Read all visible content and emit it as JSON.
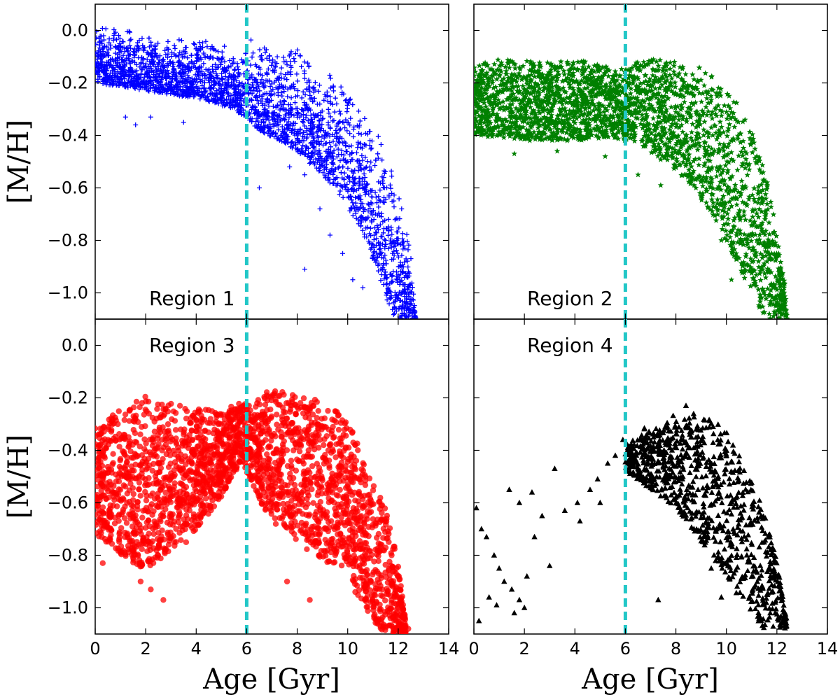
{
  "chart_data": {
    "type": "scatter",
    "title": "",
    "layout": "2x2 grid, shared axes",
    "xlabel": "Age [Gyr]",
    "ylabel": "[M/H]",
    "xlim": [
      0,
      14
    ],
    "ylim": [
      -1.1,
      0.1
    ],
    "x_ticks": [
      "0",
      "2",
      "4",
      "6",
      "8",
      "10",
      "12",
      "14"
    ],
    "y_ticks": [
      "0.0",
      "−0.2",
      "−0.4",
      "−0.6",
      "−0.8",
      "−1.0"
    ],
    "y_tick_values": [
      0.0,
      -0.2,
      -0.4,
      -0.6,
      -0.8,
      -1.0
    ],
    "reference_line": {
      "x": 6,
      "color": "#22c7c7",
      "style": "dashed"
    },
    "panels": [
      {
        "name": "region-1",
        "label": "Region 1",
        "marker": "plus",
        "color": "#0000ff",
        "envelope": [
          [
            0,
            0.02
          ],
          [
            1,
            0.01
          ],
          [
            2,
            -0.01
          ],
          [
            2.8,
            -0.04
          ],
          [
            3.2,
            -0.02
          ],
          [
            4,
            -0.04
          ],
          [
            4.5,
            -0.02
          ],
          [
            5,
            -0.04
          ],
          [
            5.7,
            -0.1
          ],
          [
            6,
            -0.02
          ],
          [
            6.5,
            -0.04
          ],
          [
            7.5,
            -0.09
          ],
          [
            8.1,
            -0.05
          ],
          [
            8.8,
            -0.17
          ],
          [
            9.5,
            -0.16
          ],
          [
            10.2,
            -0.2
          ],
          [
            10.8,
            -0.3
          ],
          [
            11.3,
            -0.38
          ],
          [
            11.8,
            -0.52
          ],
          [
            12.2,
            -0.68
          ],
          [
            12.5,
            -0.85
          ],
          [
            12.7,
            -1.1
          ]
        ],
        "lower": [
          [
            0,
            -0.2
          ],
          [
            2,
            -0.23
          ],
          [
            4,
            -0.26
          ],
          [
            5.5,
            -0.3
          ],
          [
            6.5,
            -0.38
          ],
          [
            8,
            -0.46
          ],
          [
            9.5,
            -0.6
          ],
          [
            10.5,
            -0.75
          ],
          [
            11.3,
            -0.95
          ],
          [
            11.8,
            -1.1
          ]
        ],
        "outliers": [
          [
            1.2,
            -0.33
          ],
          [
            1.6,
            -0.36
          ],
          [
            2.2,
            -0.33
          ],
          [
            3.5,
            -0.35
          ],
          [
            6.5,
            -0.6
          ],
          [
            7.7,
            -0.52
          ],
          [
            8.3,
            -0.55
          ],
          [
            8.9,
            -0.68
          ],
          [
            9.8,
            -0.85
          ],
          [
            8.3,
            -0.91
          ],
          [
            9.3,
            -0.78
          ],
          [
            10.2,
            -0.95
          ],
          [
            10.6,
            -0.98
          ]
        ]
      },
      {
        "name": "region-2",
        "label": "Region 2",
        "marker": "star",
        "color": "#008000",
        "envelope": [
          [
            0,
            -0.13
          ],
          [
            1,
            -0.11
          ],
          [
            2,
            -0.11
          ],
          [
            3,
            -0.12
          ],
          [
            4,
            -0.11
          ],
          [
            5,
            -0.13
          ],
          [
            6,
            -0.14
          ],
          [
            6.8,
            -0.1
          ],
          [
            8,
            -0.12
          ],
          [
            9,
            -0.14
          ],
          [
            10,
            -0.22
          ],
          [
            10.8,
            -0.33
          ],
          [
            11.3,
            -0.45
          ],
          [
            11.7,
            -0.6
          ],
          [
            12,
            -0.78
          ],
          [
            12.3,
            -0.95
          ],
          [
            12.4,
            -1.1
          ]
        ],
        "lower": [
          [
            0,
            -0.4
          ],
          [
            2,
            -0.42
          ],
          [
            4,
            -0.42
          ],
          [
            5.5,
            -0.41
          ],
          [
            6.5,
            -0.43
          ],
          [
            7.5,
            -0.5
          ],
          [
            8.5,
            -0.58
          ],
          [
            9.5,
            -0.72
          ],
          [
            10.5,
            -0.9
          ],
          [
            11.2,
            -1.05
          ],
          [
            11.6,
            -1.1
          ]
        ],
        "outliers": [
          [
            1.6,
            -0.47
          ],
          [
            3.3,
            -0.46
          ],
          [
            5.2,
            -0.48
          ],
          [
            6.5,
            -0.55
          ],
          [
            7.4,
            -0.59
          ],
          [
            8.4,
            -0.55
          ],
          [
            9.8,
            -0.8
          ],
          [
            10.2,
            -0.95
          ],
          [
            11.7,
            -1.08
          ]
        ]
      },
      {
        "name": "region-3",
        "label": "Region 3",
        "marker": "circle",
        "color": "#ff0000",
        "envelope": [
          [
            0,
            -0.3
          ],
          [
            1,
            -0.24
          ],
          [
            2,
            -0.19
          ],
          [
            3,
            -0.22
          ],
          [
            4,
            -0.24
          ],
          [
            5,
            -0.25
          ],
          [
            5.8,
            -0.21
          ],
          [
            6.2,
            -0.23
          ],
          [
            6.8,
            -0.16
          ],
          [
            7.8,
            -0.18
          ],
          [
            8.8,
            -0.2
          ],
          [
            9.6,
            -0.24
          ],
          [
            10.2,
            -0.33
          ],
          [
            10.7,
            -0.44
          ],
          [
            11.3,
            -0.56
          ],
          [
            11.8,
            -0.72
          ],
          [
            12.1,
            -0.9
          ],
          [
            12.3,
            -1.05
          ]
        ],
        "lower": [
          [
            0,
            -0.72
          ],
          [
            1,
            -0.8
          ],
          [
            2,
            -0.86
          ],
          [
            3,
            -0.78
          ],
          [
            4,
            -0.7
          ],
          [
            5,
            -0.58
          ],
          [
            5.8,
            -0.44
          ],
          [
            6.3,
            -0.55
          ],
          [
            7,
            -0.68
          ],
          [
            8,
            -0.75
          ],
          [
            9,
            -0.82
          ],
          [
            10,
            -0.85
          ],
          [
            10.5,
            -0.98
          ],
          [
            11,
            -1.05
          ],
          [
            11.5,
            -1.1
          ]
        ],
        "outliers": [
          [
            1.8,
            -0.9
          ],
          [
            2.2,
            -0.93
          ],
          [
            2.7,
            -0.97
          ],
          [
            0.3,
            -0.83
          ],
          [
            3.6,
            -0.75
          ],
          [
            7.6,
            -0.9
          ],
          [
            8.5,
            -0.97
          ],
          [
            9.6,
            -0.72
          ],
          [
            10.3,
            -0.94
          ],
          [
            11.3,
            -1.07
          ],
          [
            12.4,
            -1.08
          ]
        ]
      },
      {
        "name": "region-4",
        "label": "Region 4",
        "marker": "triangle",
        "color": "#000000",
        "envelope": [
          [
            6,
            -0.38
          ],
          [
            6.8,
            -0.31
          ],
          [
            7.8,
            -0.27
          ],
          [
            8.8,
            -0.25
          ],
          [
            9.8,
            -0.3
          ],
          [
            10.5,
            -0.38
          ],
          [
            11,
            -0.5
          ],
          [
            11.5,
            -0.63
          ],
          [
            11.9,
            -0.78
          ],
          [
            12.2,
            -0.92
          ],
          [
            12.4,
            -1.05
          ]
        ],
        "lower": [
          [
            6,
            -0.48
          ],
          [
            7,
            -0.55
          ],
          [
            8,
            -0.62
          ],
          [
            9,
            -0.75
          ],
          [
            10,
            -0.9
          ],
          [
            10.8,
            -1.0
          ],
          [
            11.5,
            -1.08
          ]
        ],
        "outliers": [
          [
            0.1,
            -0.62
          ],
          [
            0.3,
            -0.7
          ],
          [
            0.5,
            -0.73
          ],
          [
            0.8,
            -0.8
          ],
          [
            1,
            -0.85
          ],
          [
            1.2,
            -0.9
          ],
          [
            1.5,
            -0.93
          ],
          [
            1.8,
            -0.97
          ],
          [
            2,
            -1.0
          ],
          [
            0.2,
            -1.05
          ],
          [
            0.6,
            -0.96
          ],
          [
            1.4,
            -0.55
          ],
          [
            1.8,
            -0.6
          ],
          [
            2.3,
            -0.56
          ],
          [
            2.7,
            -0.65
          ],
          [
            3.2,
            -0.47
          ],
          [
            3.6,
            -0.63
          ],
          [
            4.2,
            -0.67
          ],
          [
            4.6,
            -0.55
          ],
          [
            5.0,
            -0.6
          ],
          [
            5.3,
            -0.45
          ],
          [
            5.6,
            -0.42
          ],
          [
            3.0,
            -0.84
          ],
          [
            2.4,
            -0.73
          ],
          [
            0.9,
            -0.99
          ],
          [
            1.6,
            -1.02
          ],
          [
            4.9,
            -0.51
          ],
          [
            2.1,
            -0.88
          ],
          [
            4.1,
            -0.6
          ],
          [
            5.9,
            -0.36
          ],
          [
            7.3,
            -0.97
          ],
          [
            8.4,
            -0.23
          ],
          [
            9.4,
            -0.85
          ],
          [
            9.8,
            -0.96
          ]
        ]
      }
    ]
  }
}
